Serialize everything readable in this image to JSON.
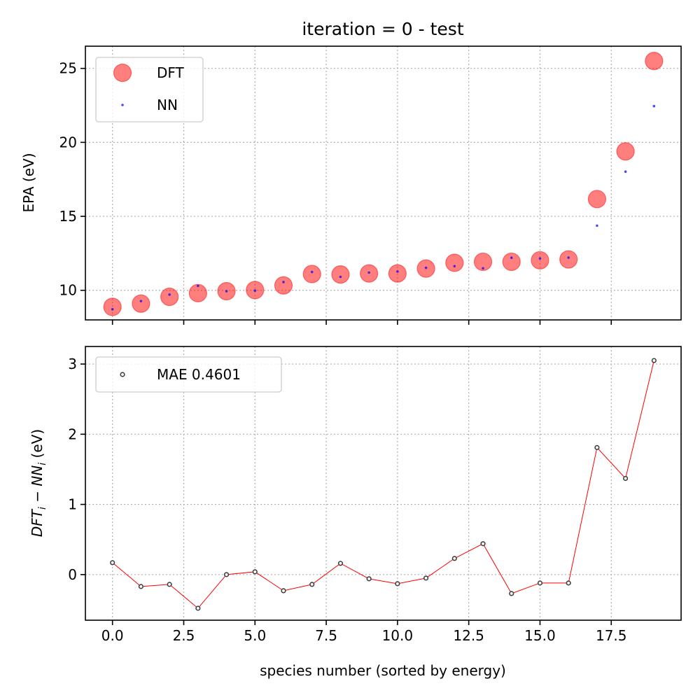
{
  "chart_data": [
    {
      "type": "scatter",
      "title": "iteration = 0 - test",
      "xlabel": "",
      "ylabel": "EPA (eV)",
      "xlim": [
        -0.95,
        19.95
      ],
      "ylim": [
        8.0,
        26.5
      ],
      "xticks": [
        0.0,
        2.5,
        5.0,
        7.5,
        10.0,
        12.5,
        15.0,
        17.5
      ],
      "yticks": [
        10,
        15,
        20,
        25
      ],
      "ytick_labels": [
        "10",
        "15",
        "20",
        "25"
      ],
      "grid": true,
      "legend_position": "upper-left",
      "series": [
        {
          "name": "DFT",
          "color": "#ff0000",
          "x": [
            0,
            1,
            2,
            3,
            4,
            5,
            6,
            7,
            8,
            9,
            10,
            11,
            12,
            13,
            14,
            15,
            16,
            17,
            18,
            19
          ],
          "values": [
            8.88,
            9.1,
            9.56,
            9.81,
            9.94,
            10.02,
            10.33,
            11.1,
            11.07,
            11.14,
            11.14,
            11.47,
            11.86,
            11.93,
            11.93,
            12.03,
            12.09,
            16.17,
            19.39,
            25.5
          ]
        },
        {
          "name": "NN",
          "color": "#0000ff",
          "x": [
            0,
            1,
            2,
            3,
            4,
            5,
            6,
            7,
            8,
            9,
            10,
            11,
            12,
            13,
            14,
            15,
            16,
            17,
            18,
            19
          ],
          "values": [
            8.72,
            9.27,
            9.71,
            10.3,
            9.94,
            9.98,
            10.56,
            11.24,
            10.91,
            11.2,
            11.27,
            11.52,
            11.63,
            11.49,
            12.2,
            12.15,
            12.21,
            14.37,
            18.02,
            22.45
          ]
        }
      ]
    },
    {
      "type": "line",
      "title": "",
      "xlabel": "species number (sorted by energy)",
      "ylabel_prefix": "DFT",
      "ylabel_sub1": "i",
      "ylabel_mid": " − NN",
      "ylabel_sub2": "i",
      "ylabel_suffix": " (eV)",
      "xlim": [
        -0.95,
        19.95
      ],
      "ylim": [
        -0.65,
        3.25
      ],
      "xticks": [
        0.0,
        2.5,
        5.0,
        7.5,
        10.0,
        12.5,
        15.0,
        17.5
      ],
      "xtick_labels": [
        "0.0",
        "2.5",
        "5.0",
        "7.5",
        "10.0",
        "12.5",
        "15.0",
        "17.5"
      ],
      "yticks": [
        0,
        1,
        2,
        3
      ],
      "ytick_labels": [
        "0",
        "1",
        "2",
        "3"
      ],
      "grid": true,
      "legend_position": "upper-left",
      "series": [
        {
          "name": "MAE 0.4601",
          "line_color": "#ff0000",
          "marker_color": "#404040",
          "x": [
            0,
            1,
            2,
            3,
            4,
            5,
            6,
            7,
            8,
            9,
            10,
            11,
            12,
            13,
            14,
            15,
            16,
            17,
            18,
            19
          ],
          "values": [
            0.17,
            -0.17,
            -0.14,
            -0.48,
            0.0,
            0.04,
            -0.23,
            -0.14,
            0.16,
            -0.06,
            -0.13,
            -0.05,
            0.23,
            0.44,
            -0.27,
            -0.12,
            -0.12,
            1.81,
            1.37,
            3.05
          ]
        }
      ]
    }
  ]
}
